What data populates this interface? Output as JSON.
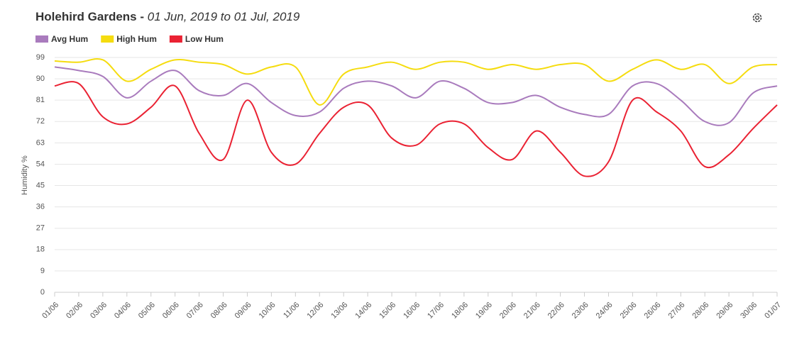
{
  "chart_data": {
    "type": "line",
    "title": "Holehird Gardens -",
    "subtitle": "01 Jun, 2019 to 01 Jul, 2019",
    "y_label": "Humidity %",
    "categories": [
      "01/06",
      "02/06",
      "03/06",
      "04/06",
      "05/06",
      "06/06",
      "07/06",
      "08/06",
      "09/06",
      "10/06",
      "11/06",
      "12/06",
      "13/06",
      "14/06",
      "15/06",
      "16/06",
      "17/06",
      "18/06",
      "19/06",
      "20/06",
      "21/06",
      "22/06",
      "23/06",
      "24/06",
      "25/06",
      "26/06",
      "27/06",
      "28/06",
      "29/06",
      "30/06",
      "01/07"
    ],
    "series": [
      {
        "name": "Avg Hum",
        "color": "#a97bbd",
        "values": [
          95,
          93.5,
          91,
          82,
          89,
          93.5,
          85,
          83,
          88,
          80,
          74.5,
          76,
          86,
          89,
          87,
          82,
          89,
          86,
          80,
          80,
          83,
          78,
          75,
          75,
          87,
          88,
          81,
          72,
          71.5,
          84,
          87
        ]
      },
      {
        "name": "High Hum",
        "color": "#f5dc0f",
        "values": [
          97.5,
          97,
          98,
          89,
          94,
          98,
          97,
          96,
          92,
          95,
          95,
          79,
          92,
          95,
          97,
          94,
          97,
          97,
          94,
          96,
          94,
          96,
          96,
          89,
          94,
          98,
          94,
          96,
          88,
          95,
          96
        ]
      },
      {
        "name": "Low Hum",
        "color": "#ea2233",
        "values": [
          87,
          88,
          74,
          71,
          78,
          87,
          67,
          56,
          81,
          59,
          54,
          67,
          78,
          79,
          65,
          62,
          71,
          71,
          61,
          56,
          68,
          59,
          49,
          55,
          81,
          76,
          68,
          53,
          58,
          69,
          79
        ]
      }
    ],
    "ylim": [
      0,
      99
    ],
    "yticks": [
      0,
      9,
      18,
      27,
      36,
      45,
      54,
      63,
      72,
      81,
      90,
      99
    ],
    "grid": true
  }
}
